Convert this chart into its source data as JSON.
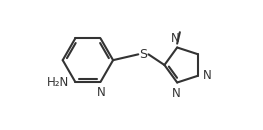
{
  "bg_color": "#ffffff",
  "bond_color": "#333333",
  "atom_color": "#333333",
  "line_width": 1.5,
  "font_size": 8.5,
  "fig_width": 2.63,
  "fig_height": 1.3,
  "dpi": 100,
  "xlim": [
    -0.3,
    5.1
  ],
  "ylim": [
    -1.1,
    1.0
  ]
}
